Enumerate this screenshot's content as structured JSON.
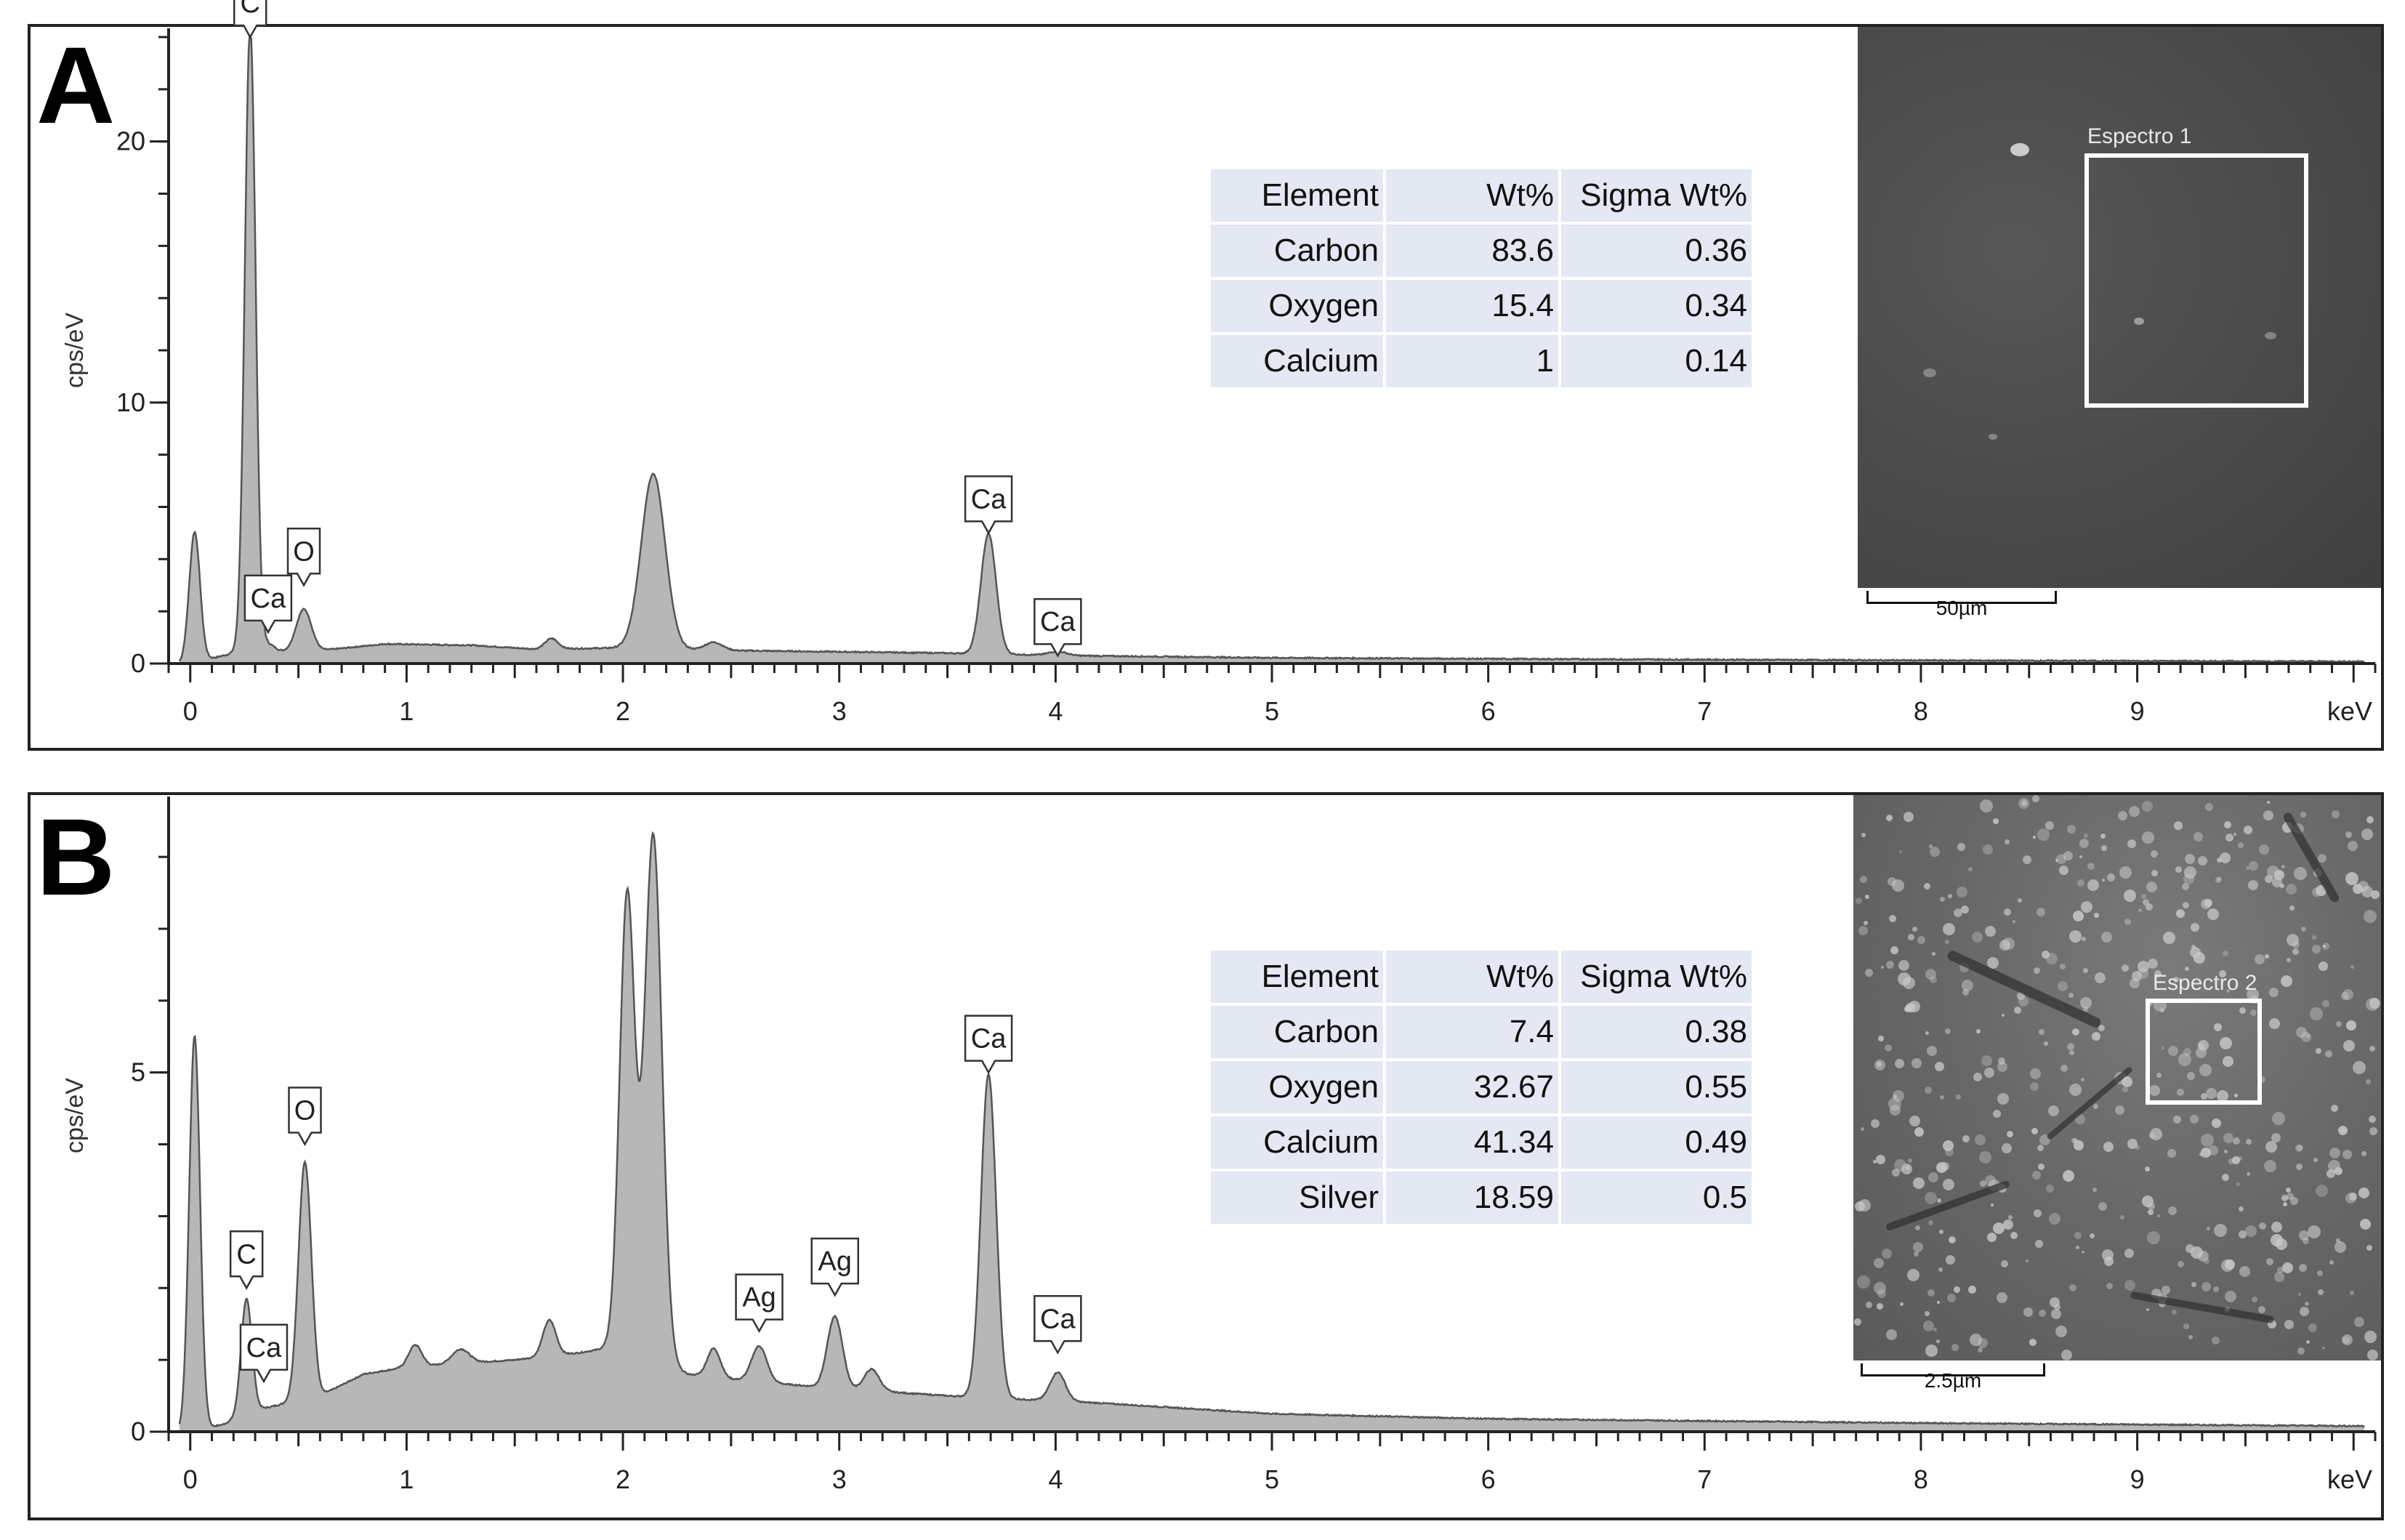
{
  "chart_data": [
    {
      "type": "area",
      "panel": "A",
      "ylabel": "cps/eV",
      "xlabel": "keV",
      "xlim": [
        -0.1,
        10.1
      ],
      "ylim": [
        0,
        24
      ],
      "y_ticks": [
        0,
        10,
        20
      ],
      "x_ticks": [
        0,
        1,
        2,
        3,
        4,
        5,
        6,
        7,
        8,
        9
      ],
      "baseline": [
        [
          0.0,
          0
        ],
        [
          0.2,
          0.4
        ],
        [
          0.6,
          0.5
        ],
        [
          0.9,
          0.75
        ],
        [
          1.3,
          0.7
        ],
        [
          1.6,
          0.55
        ],
        [
          2.0,
          0.6
        ],
        [
          2.5,
          0.5
        ],
        [
          3.0,
          0.45
        ],
        [
          3.5,
          0.4
        ],
        [
          4.1,
          0.3
        ],
        [
          5.0,
          0.22
        ],
        [
          6.0,
          0.18
        ],
        [
          7.0,
          0.15
        ],
        [
          8.0,
          0.12
        ],
        [
          9.0,
          0.1
        ],
        [
          10.0,
          0.08
        ]
      ],
      "peaks": [
        {
          "x": 0.02,
          "height": 5.0,
          "width": 0.025
        },
        {
          "x": 0.277,
          "height": 24.0,
          "width": 0.025
        },
        {
          "x": 0.36,
          "height": 0.3,
          "width": 0.03
        },
        {
          "x": 0.525,
          "height": 1.6,
          "width": 0.035
        },
        {
          "x": 1.67,
          "height": 0.4,
          "width": 0.03
        },
        {
          "x": 2.14,
          "height": 6.7,
          "width": 0.055
        },
        {
          "x": 2.42,
          "height": 0.3,
          "width": 0.04
        },
        {
          "x": 3.69,
          "height": 4.6,
          "width": 0.035
        },
        {
          "x": 4.01,
          "height": 0.15,
          "width": 0.04
        }
      ],
      "peak_labels": [
        {
          "label": "C",
          "x": 0.277,
          "y": 24.0
        },
        {
          "label": "Ca",
          "x": 0.36,
          "y": 1.2
        },
        {
          "label": "O",
          "x": 0.525,
          "y": 3.0
        },
        {
          "label": "Ca",
          "x": 3.69,
          "y": 5.0
        },
        {
          "label": "Ca",
          "x": 4.01,
          "y": 0.3
        }
      ],
      "table": {
        "headers": [
          "Element",
          "Wt%",
          "Sigma Wt%"
        ],
        "rows": [
          [
            "Carbon",
            "83.6",
            "0.36"
          ],
          [
            "Oxygen",
            "15.4",
            "0.34"
          ],
          [
            "Calcium",
            "1",
            "0.14"
          ]
        ]
      }
    },
    {
      "type": "area",
      "panel": "B",
      "ylabel": "cps/eV",
      "xlabel": "keV",
      "xlim": [
        -0.1,
        10.1
      ],
      "ylim": [
        0,
        8.8
      ],
      "y_ticks": [
        0,
        5
      ],
      "x_ticks": [
        0,
        1,
        2,
        3,
        4,
        5,
        6,
        7,
        8,
        9
      ],
      "baseline": [
        [
          0.0,
          0
        ],
        [
          0.15,
          0.1
        ],
        [
          0.3,
          0.3
        ],
        [
          0.6,
          0.5
        ],
        [
          0.8,
          0.8
        ],
        [
          1.0,
          0.9
        ],
        [
          1.5,
          1.0
        ],
        [
          1.8,
          1.1
        ],
        [
          2.0,
          1.2
        ],
        [
          2.3,
          0.8
        ],
        [
          2.6,
          0.7
        ],
        [
          3.0,
          0.6
        ],
        [
          3.5,
          0.5
        ],
        [
          4.2,
          0.4
        ],
        [
          5.0,
          0.25
        ],
        [
          6.0,
          0.18
        ],
        [
          7.0,
          0.15
        ],
        [
          8.0,
          0.12
        ],
        [
          9.0,
          0.1
        ],
        [
          10.0,
          0.08
        ]
      ],
      "peaks": [
        {
          "x": 0.02,
          "height": 5.5,
          "width": 0.025
        },
        {
          "x": 0.26,
          "height": 1.6,
          "width": 0.025
        },
        {
          "x": 0.53,
          "height": 3.3,
          "width": 0.03
        },
        {
          "x": 1.04,
          "height": 0.3,
          "width": 0.03
        },
        {
          "x": 1.25,
          "height": 0.2,
          "width": 0.04
        },
        {
          "x": 1.66,
          "height": 0.5,
          "width": 0.03
        },
        {
          "x": 2.02,
          "height": 6.3,
          "width": 0.035
        },
        {
          "x": 2.14,
          "height": 7.3,
          "width": 0.04
        },
        {
          "x": 2.42,
          "height": 0.4,
          "width": 0.03
        },
        {
          "x": 2.63,
          "height": 0.5,
          "width": 0.035
        },
        {
          "x": 2.98,
          "height": 1.0,
          "width": 0.035
        },
        {
          "x": 3.15,
          "height": 0.3,
          "width": 0.035
        },
        {
          "x": 3.69,
          "height": 4.5,
          "width": 0.035
        },
        {
          "x": 4.01,
          "height": 0.4,
          "width": 0.035
        }
      ],
      "peak_labels": [
        {
          "label": "C",
          "x": 0.26,
          "y": 2.0
        },
        {
          "label": "Ca",
          "x": 0.34,
          "y": 0.7
        },
        {
          "label": "O",
          "x": 0.53,
          "y": 4.0
        },
        {
          "label": "Ag",
          "x": 2.63,
          "y": 1.4
        },
        {
          "label": "Ag",
          "x": 2.98,
          "y": 1.9
        },
        {
          "label": "Ca",
          "x": 3.69,
          "y": 5.0
        },
        {
          "label": "Ca",
          "x": 4.01,
          "y": 1.1
        }
      ],
      "table": {
        "headers": [
          "Element",
          "Wt%",
          "Sigma Wt%"
        ],
        "rows": [
          [
            "Carbon",
            "7.4",
            "0.38"
          ],
          [
            "Oxygen",
            "32.67",
            "0.55"
          ],
          [
            "Calcium",
            "41.34",
            "0.49"
          ],
          [
            "Silver",
            "18.59",
            "0.5"
          ]
        ]
      }
    }
  ],
  "panels": {
    "a": {
      "letter": "A",
      "sem_label": "Espectro 1",
      "scale": "50µm"
    },
    "b": {
      "letter": "B",
      "sem_label": "Espectro 2",
      "scale": "2.5µm"
    }
  },
  "colors": {
    "fill": "#b7b7b7",
    "line": "#555555",
    "axis": "#222222",
    "sem_bg_a": "#4b4b4b",
    "sem_bg_b": "#6a6a6a",
    "table_bg": "#e4e8f3"
  }
}
